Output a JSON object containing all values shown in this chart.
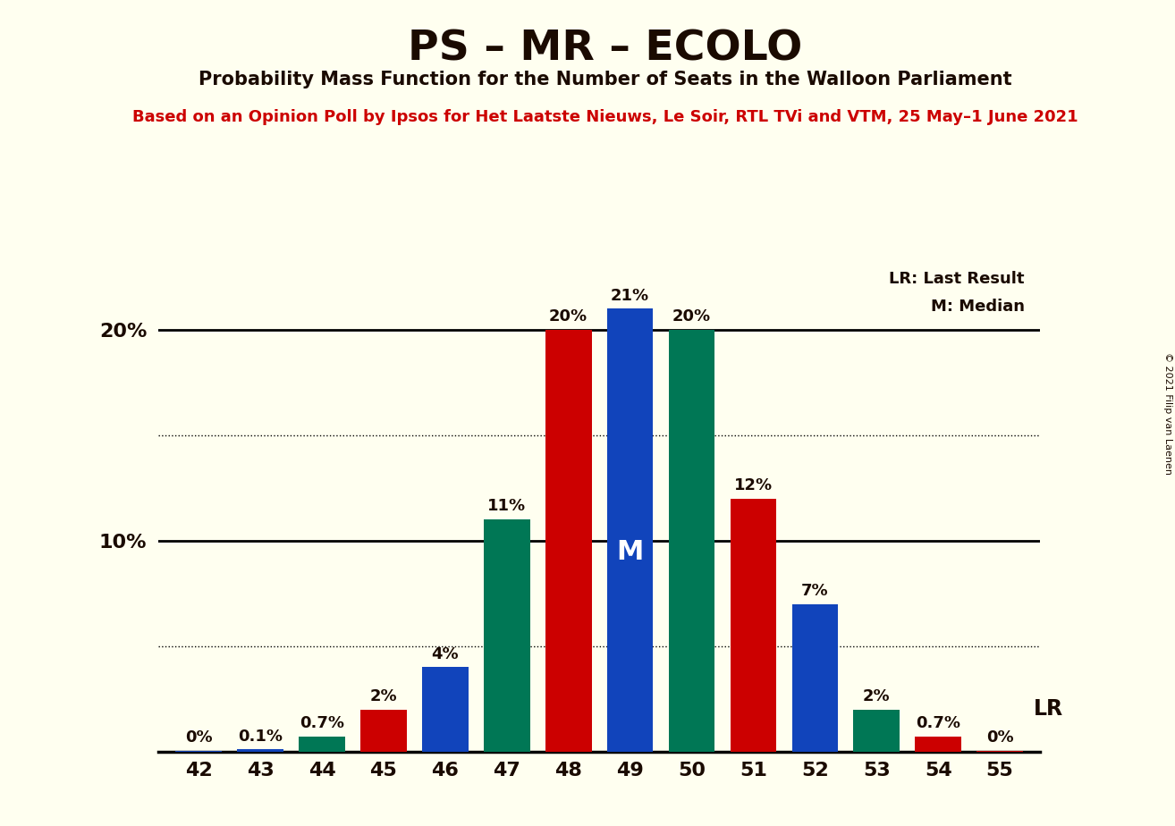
{
  "title": "PS – MR – ECOLO",
  "subtitle": "Probability Mass Function for the Number of Seats in the Walloon Parliament",
  "source_line": "Based on an Opinion Poll by Ipsos for Het Laatste Nieuws, Le Soir, RTL TVi and VTM, 25 May–1 June 2021",
  "copyright": "© 2021 Filip van Laenen",
  "legend_lr": "LR: Last Result",
  "legend_m": "M: Median",
  "seats": [
    42,
    43,
    44,
    45,
    46,
    47,
    48,
    49,
    50,
    51,
    52,
    53,
    54,
    55
  ],
  "values": [
    0.02,
    0.1,
    0.7,
    2.0,
    4.0,
    11.0,
    20.0,
    21.0,
    20.0,
    12.0,
    7.0,
    2.0,
    0.7,
    0.05
  ],
  "labels": [
    "0%",
    "0.1%",
    "0.7%",
    "2%",
    "4%",
    "11%",
    "20%",
    "21%",
    "20%",
    "12%",
    "7%",
    "2%",
    "0.7%",
    "0%"
  ],
  "colors": [
    "#1144bb",
    "#1144bb",
    "#007755",
    "#cc0000",
    "#1144bb",
    "#007755",
    "#cc0000",
    "#1144bb",
    "#007755",
    "#cc0000",
    "#1144bb",
    "#007755",
    "#cc0000",
    "#cc0000"
  ],
  "ps_color": "#cc0000",
  "mr_color": "#1144bb",
  "ecolo_color": "#007755",
  "bg_color": "#fffff0",
  "text_color": "#1a0a00",
  "source_color": "#cc0000",
  "ylim_max": 23.5,
  "median_idx": 7,
  "bar_width": 0.75
}
